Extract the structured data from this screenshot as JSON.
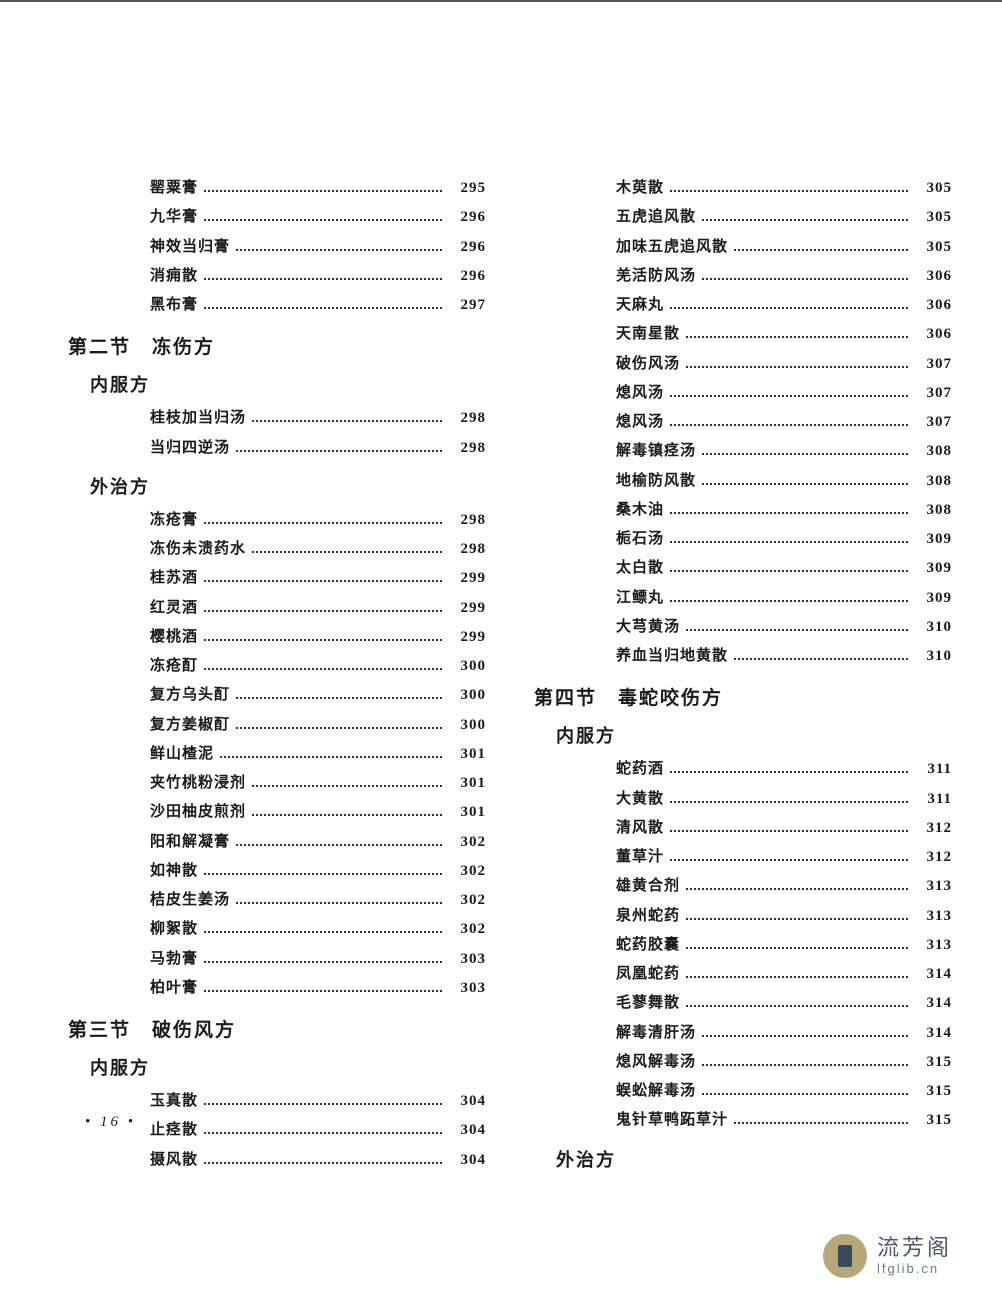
{
  "pageNumber": "• 16 •",
  "watermark": {
    "cn": "流芳阁",
    "en": "lfglib.cn"
  },
  "leftColumn": {
    "topEntries": [
      {
        "name": "罂粟膏",
        "page": "295"
      },
      {
        "name": "九华膏",
        "page": "296"
      },
      {
        "name": "神效当归膏",
        "page": "296"
      },
      {
        "name": "消痈散",
        "page": "296"
      },
      {
        "name": "黑布膏",
        "page": "297"
      }
    ],
    "section2": {
      "title": "第二节　冻伤方",
      "sub1": {
        "title": "内服方",
        "entries": [
          {
            "name": "桂枝加当归汤",
            "page": "298"
          },
          {
            "name": "当归四逆汤",
            "page": "298"
          }
        ]
      },
      "sub2": {
        "title": "外治方",
        "entries": [
          {
            "name": "冻疮膏",
            "page": "298"
          },
          {
            "name": "冻伤未溃药水",
            "page": "298"
          },
          {
            "name": "桂苏酒",
            "page": "299"
          },
          {
            "name": "红灵酒",
            "page": "299"
          },
          {
            "name": "樱桃酒",
            "page": "299"
          },
          {
            "name": "冻疮酊",
            "page": "300"
          },
          {
            "name": "复方乌头酊",
            "page": "300"
          },
          {
            "name": "复方姜椒酊",
            "page": "300"
          },
          {
            "name": "鲜山楂泥",
            "page": "301"
          },
          {
            "name": "夹竹桃粉浸剂",
            "page": "301"
          },
          {
            "name": "沙田柚皮煎剂",
            "page": "301"
          },
          {
            "name": "阳和解凝膏",
            "page": "302"
          },
          {
            "name": "如神散",
            "page": "302"
          },
          {
            "name": "桔皮生姜汤",
            "page": "302"
          },
          {
            "name": "柳絮散",
            "page": "302"
          },
          {
            "name": "马勃膏",
            "page": "303"
          },
          {
            "name": "柏叶膏",
            "page": "303"
          }
        ]
      }
    },
    "section3": {
      "title": "第三节　破伤风方",
      "sub1": {
        "title": "内服方",
        "entries": [
          {
            "name": "玉真散",
            "page": "304"
          },
          {
            "name": "止痉散",
            "page": "304"
          },
          {
            "name": "摄风散",
            "page": "304"
          }
        ]
      }
    }
  },
  "rightColumn": {
    "topEntries": [
      {
        "name": "木萸散",
        "page": "305"
      },
      {
        "name": "五虎追风散",
        "page": "305"
      },
      {
        "name": "加味五虎追风散",
        "page": "305"
      },
      {
        "name": "羌活防风汤",
        "page": "306"
      },
      {
        "name": "天麻丸",
        "page": "306"
      },
      {
        "name": "天南星散",
        "page": "306"
      },
      {
        "name": "破伤风汤",
        "page": "307"
      },
      {
        "name": "熄风汤",
        "page": "307"
      },
      {
        "name": "熄风汤",
        "page": "307"
      },
      {
        "name": "解毒镇痉汤",
        "page": "308"
      },
      {
        "name": "地榆防风散",
        "page": "308"
      },
      {
        "name": "桑木油",
        "page": "308"
      },
      {
        "name": "栀石汤",
        "page": "309"
      },
      {
        "name": "太白散",
        "page": "309"
      },
      {
        "name": "江鳔丸",
        "page": "309"
      },
      {
        "name": "大芎黄汤",
        "page": "310"
      },
      {
        "name": "养血当归地黄散",
        "page": "310"
      }
    ],
    "section4": {
      "title": "第四节　毒蛇咬伤方",
      "sub1": {
        "title": "内服方",
        "entries": [
          {
            "name": "蛇药酒",
            "page": "311"
          },
          {
            "name": "大黄散",
            "page": "311"
          },
          {
            "name": "清风散",
            "page": "312"
          },
          {
            "name": "董草汁",
            "page": "312"
          },
          {
            "name": "雄黄合剂",
            "page": "313"
          },
          {
            "name": "泉州蛇药",
            "page": "313"
          },
          {
            "name": "蛇药胶囊",
            "page": "313"
          },
          {
            "name": "凤凰蛇药",
            "page": "314"
          },
          {
            "name": "毛蓼舞散",
            "page": "314"
          },
          {
            "name": "解毒清肝汤",
            "page": "314"
          },
          {
            "name": "熄风解毒汤",
            "page": "315"
          },
          {
            "name": "蜈蚣解毒汤",
            "page": "315"
          },
          {
            "name": "鬼针草鸭跖草汁",
            "page": "315"
          }
        ]
      },
      "sub2": {
        "title": "外治方"
      }
    }
  }
}
